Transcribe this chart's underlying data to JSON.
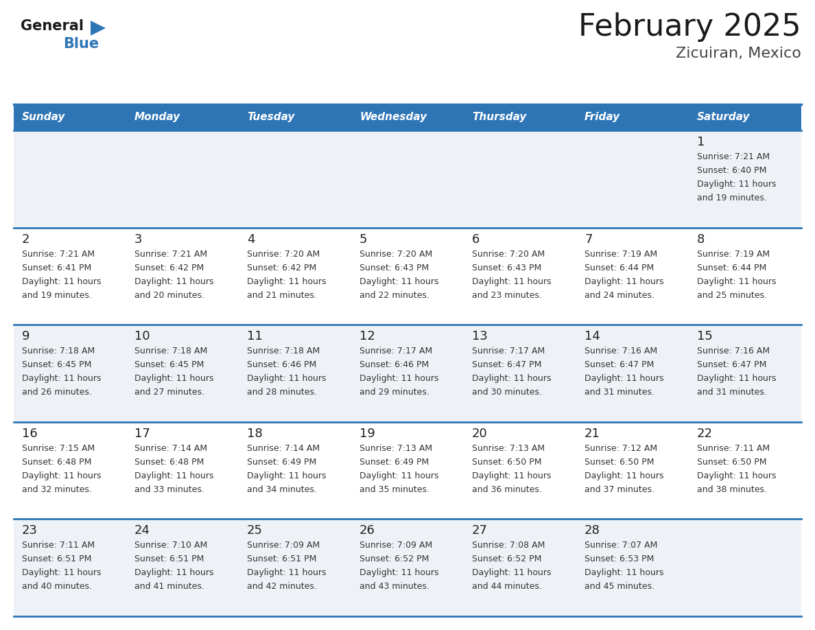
{
  "title": "February 2025",
  "subtitle": "Zicuiran, Mexico",
  "header_bg_color": "#2E75B6",
  "header_text_color": "#FFFFFF",
  "day_names": [
    "Sunday",
    "Monday",
    "Tuesday",
    "Wednesday",
    "Thursday",
    "Friday",
    "Saturday"
  ],
  "title_color": "#1a1a1a",
  "subtitle_color": "#444444",
  "cell_bg_color": "#EEF2F7",
  "cell_bg_white": "#FFFFFF",
  "separator_color": "#2E75B6",
  "day_num_color": "#222222",
  "cell_text_color": "#333333",
  "logo_general_color": "#1a1a1a",
  "logo_blue_color": "#2E75B6",
  "calendar_data": [
    [
      {
        "day": null,
        "sunrise": null,
        "sunset": null,
        "daylight_line1": null,
        "daylight_line2": null
      },
      {
        "day": null,
        "sunrise": null,
        "sunset": null,
        "daylight_line1": null,
        "daylight_line2": null
      },
      {
        "day": null,
        "sunrise": null,
        "sunset": null,
        "daylight_line1": null,
        "daylight_line2": null
      },
      {
        "day": null,
        "sunrise": null,
        "sunset": null,
        "daylight_line1": null,
        "daylight_line2": null
      },
      {
        "day": null,
        "sunrise": null,
        "sunset": null,
        "daylight_line1": null,
        "daylight_line2": null
      },
      {
        "day": null,
        "sunrise": null,
        "sunset": null,
        "daylight_line1": null,
        "daylight_line2": null
      },
      {
        "day": 1,
        "sunrise": "Sunrise: 7:21 AM",
        "sunset": "Sunset: 6:40 PM",
        "daylight_line1": "Daylight: 11 hours",
        "daylight_line2": "and 19 minutes."
      }
    ],
    [
      {
        "day": 2,
        "sunrise": "Sunrise: 7:21 AM",
        "sunset": "Sunset: 6:41 PM",
        "daylight_line1": "Daylight: 11 hours",
        "daylight_line2": "and 19 minutes."
      },
      {
        "day": 3,
        "sunrise": "Sunrise: 7:21 AM",
        "sunset": "Sunset: 6:42 PM",
        "daylight_line1": "Daylight: 11 hours",
        "daylight_line2": "and 20 minutes."
      },
      {
        "day": 4,
        "sunrise": "Sunrise: 7:20 AM",
        "sunset": "Sunset: 6:42 PM",
        "daylight_line1": "Daylight: 11 hours",
        "daylight_line2": "and 21 minutes."
      },
      {
        "day": 5,
        "sunrise": "Sunrise: 7:20 AM",
        "sunset": "Sunset: 6:43 PM",
        "daylight_line1": "Daylight: 11 hours",
        "daylight_line2": "and 22 minutes."
      },
      {
        "day": 6,
        "sunrise": "Sunrise: 7:20 AM",
        "sunset": "Sunset: 6:43 PM",
        "daylight_line1": "Daylight: 11 hours",
        "daylight_line2": "and 23 minutes."
      },
      {
        "day": 7,
        "sunrise": "Sunrise: 7:19 AM",
        "sunset": "Sunset: 6:44 PM",
        "daylight_line1": "Daylight: 11 hours",
        "daylight_line2": "and 24 minutes."
      },
      {
        "day": 8,
        "sunrise": "Sunrise: 7:19 AM",
        "sunset": "Sunset: 6:44 PM",
        "daylight_line1": "Daylight: 11 hours",
        "daylight_line2": "and 25 minutes."
      }
    ],
    [
      {
        "day": 9,
        "sunrise": "Sunrise: 7:18 AM",
        "sunset": "Sunset: 6:45 PM",
        "daylight_line1": "Daylight: 11 hours",
        "daylight_line2": "and 26 minutes."
      },
      {
        "day": 10,
        "sunrise": "Sunrise: 7:18 AM",
        "sunset": "Sunset: 6:45 PM",
        "daylight_line1": "Daylight: 11 hours",
        "daylight_line2": "and 27 minutes."
      },
      {
        "day": 11,
        "sunrise": "Sunrise: 7:18 AM",
        "sunset": "Sunset: 6:46 PM",
        "daylight_line1": "Daylight: 11 hours",
        "daylight_line2": "and 28 minutes."
      },
      {
        "day": 12,
        "sunrise": "Sunrise: 7:17 AM",
        "sunset": "Sunset: 6:46 PM",
        "daylight_line1": "Daylight: 11 hours",
        "daylight_line2": "and 29 minutes."
      },
      {
        "day": 13,
        "sunrise": "Sunrise: 7:17 AM",
        "sunset": "Sunset: 6:47 PM",
        "daylight_line1": "Daylight: 11 hours",
        "daylight_line2": "and 30 minutes."
      },
      {
        "day": 14,
        "sunrise": "Sunrise: 7:16 AM",
        "sunset": "Sunset: 6:47 PM",
        "daylight_line1": "Daylight: 11 hours",
        "daylight_line2": "and 31 minutes."
      },
      {
        "day": 15,
        "sunrise": "Sunrise: 7:16 AM",
        "sunset": "Sunset: 6:47 PM",
        "daylight_line1": "Daylight: 11 hours",
        "daylight_line2": "and 31 minutes."
      }
    ],
    [
      {
        "day": 16,
        "sunrise": "Sunrise: 7:15 AM",
        "sunset": "Sunset: 6:48 PM",
        "daylight_line1": "Daylight: 11 hours",
        "daylight_line2": "and 32 minutes."
      },
      {
        "day": 17,
        "sunrise": "Sunrise: 7:14 AM",
        "sunset": "Sunset: 6:48 PM",
        "daylight_line1": "Daylight: 11 hours",
        "daylight_line2": "and 33 minutes."
      },
      {
        "day": 18,
        "sunrise": "Sunrise: 7:14 AM",
        "sunset": "Sunset: 6:49 PM",
        "daylight_line1": "Daylight: 11 hours",
        "daylight_line2": "and 34 minutes."
      },
      {
        "day": 19,
        "sunrise": "Sunrise: 7:13 AM",
        "sunset": "Sunset: 6:49 PM",
        "daylight_line1": "Daylight: 11 hours",
        "daylight_line2": "and 35 minutes."
      },
      {
        "day": 20,
        "sunrise": "Sunrise: 7:13 AM",
        "sunset": "Sunset: 6:50 PM",
        "daylight_line1": "Daylight: 11 hours",
        "daylight_line2": "and 36 minutes."
      },
      {
        "day": 21,
        "sunrise": "Sunrise: 7:12 AM",
        "sunset": "Sunset: 6:50 PM",
        "daylight_line1": "Daylight: 11 hours",
        "daylight_line2": "and 37 minutes."
      },
      {
        "day": 22,
        "sunrise": "Sunrise: 7:11 AM",
        "sunset": "Sunset: 6:50 PM",
        "daylight_line1": "Daylight: 11 hours",
        "daylight_line2": "and 38 minutes."
      }
    ],
    [
      {
        "day": 23,
        "sunrise": "Sunrise: 7:11 AM",
        "sunset": "Sunset: 6:51 PM",
        "daylight_line1": "Daylight: 11 hours",
        "daylight_line2": "and 40 minutes."
      },
      {
        "day": 24,
        "sunrise": "Sunrise: 7:10 AM",
        "sunset": "Sunset: 6:51 PM",
        "daylight_line1": "Daylight: 11 hours",
        "daylight_line2": "and 41 minutes."
      },
      {
        "day": 25,
        "sunrise": "Sunrise: 7:09 AM",
        "sunset": "Sunset: 6:51 PM",
        "daylight_line1": "Daylight: 11 hours",
        "daylight_line2": "and 42 minutes."
      },
      {
        "day": 26,
        "sunrise": "Sunrise: 7:09 AM",
        "sunset": "Sunset: 6:52 PM",
        "daylight_line1": "Daylight: 11 hours",
        "daylight_line2": "and 43 minutes."
      },
      {
        "day": 27,
        "sunrise": "Sunrise: 7:08 AM",
        "sunset": "Sunset: 6:52 PM",
        "daylight_line1": "Daylight: 11 hours",
        "daylight_line2": "and 44 minutes."
      },
      {
        "day": 28,
        "sunrise": "Sunrise: 7:07 AM",
        "sunset": "Sunset: 6:53 PM",
        "daylight_line1": "Daylight: 11 hours",
        "daylight_line2": "and 45 minutes."
      },
      {
        "day": null,
        "sunrise": null,
        "sunset": null,
        "daylight_line1": null,
        "daylight_line2": null
      }
    ]
  ]
}
